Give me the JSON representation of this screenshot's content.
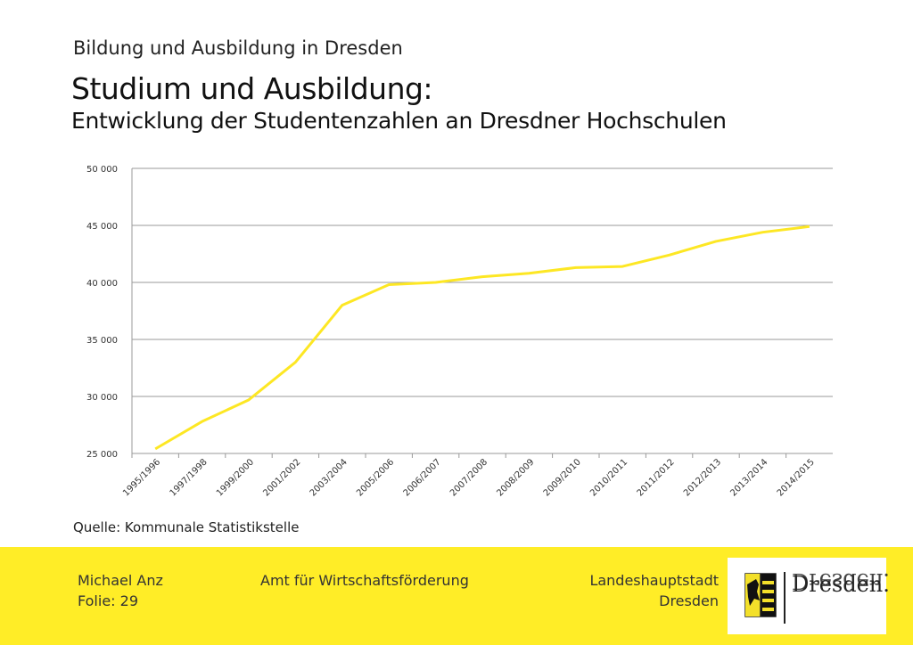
{
  "header": {
    "kicker": "Bildung und Ausbildung in Dresden",
    "title": "Studium und Ausbildung:",
    "subtitle": "Entwicklung der Studentenzahlen an Dresdner Hochschulen"
  },
  "source": "Quelle: Kommunale Statistikstelle",
  "footer": {
    "author": "Michael Anz",
    "slide": "Folie: 29",
    "department": "Amt für Wirtschaftsförderung",
    "city_line1": "Landeshauptstadt",
    "city_line2": "Dresden",
    "logo_text": "Dresden.",
    "background_color": "#ffed27"
  },
  "chart_data": {
    "type": "line",
    "title": "",
    "xlabel": "",
    "ylabel": "",
    "categories": [
      "1995/1996",
      "1997/1998",
      "1999/2000",
      "2001/2002",
      "2003/2004",
      "2005/2006",
      "2006/2007",
      "2007/2008",
      "2008/2009",
      "2009/2010",
      "2010/2011",
      "2011/2012",
      "2012/2013",
      "2013/2014",
      "2014/2015"
    ],
    "series": [
      {
        "values": [
          25400,
          27800,
          29700,
          33000,
          38000,
          39800,
          40000,
          40500,
          40800,
          41300,
          41400,
          42400,
          43600,
          44400,
          44900
        ],
        "color": "#fde724"
      }
    ],
    "ylim": [
      25000,
      50000
    ],
    "yticks": [
      25000,
      30000,
      35000,
      40000,
      45000,
      50000
    ],
    "ytick_labels": [
      "25 000",
      "30 000",
      "35 000",
      "40 000",
      "45 000",
      "50 000"
    ],
    "grid": true,
    "legend": "none"
  }
}
